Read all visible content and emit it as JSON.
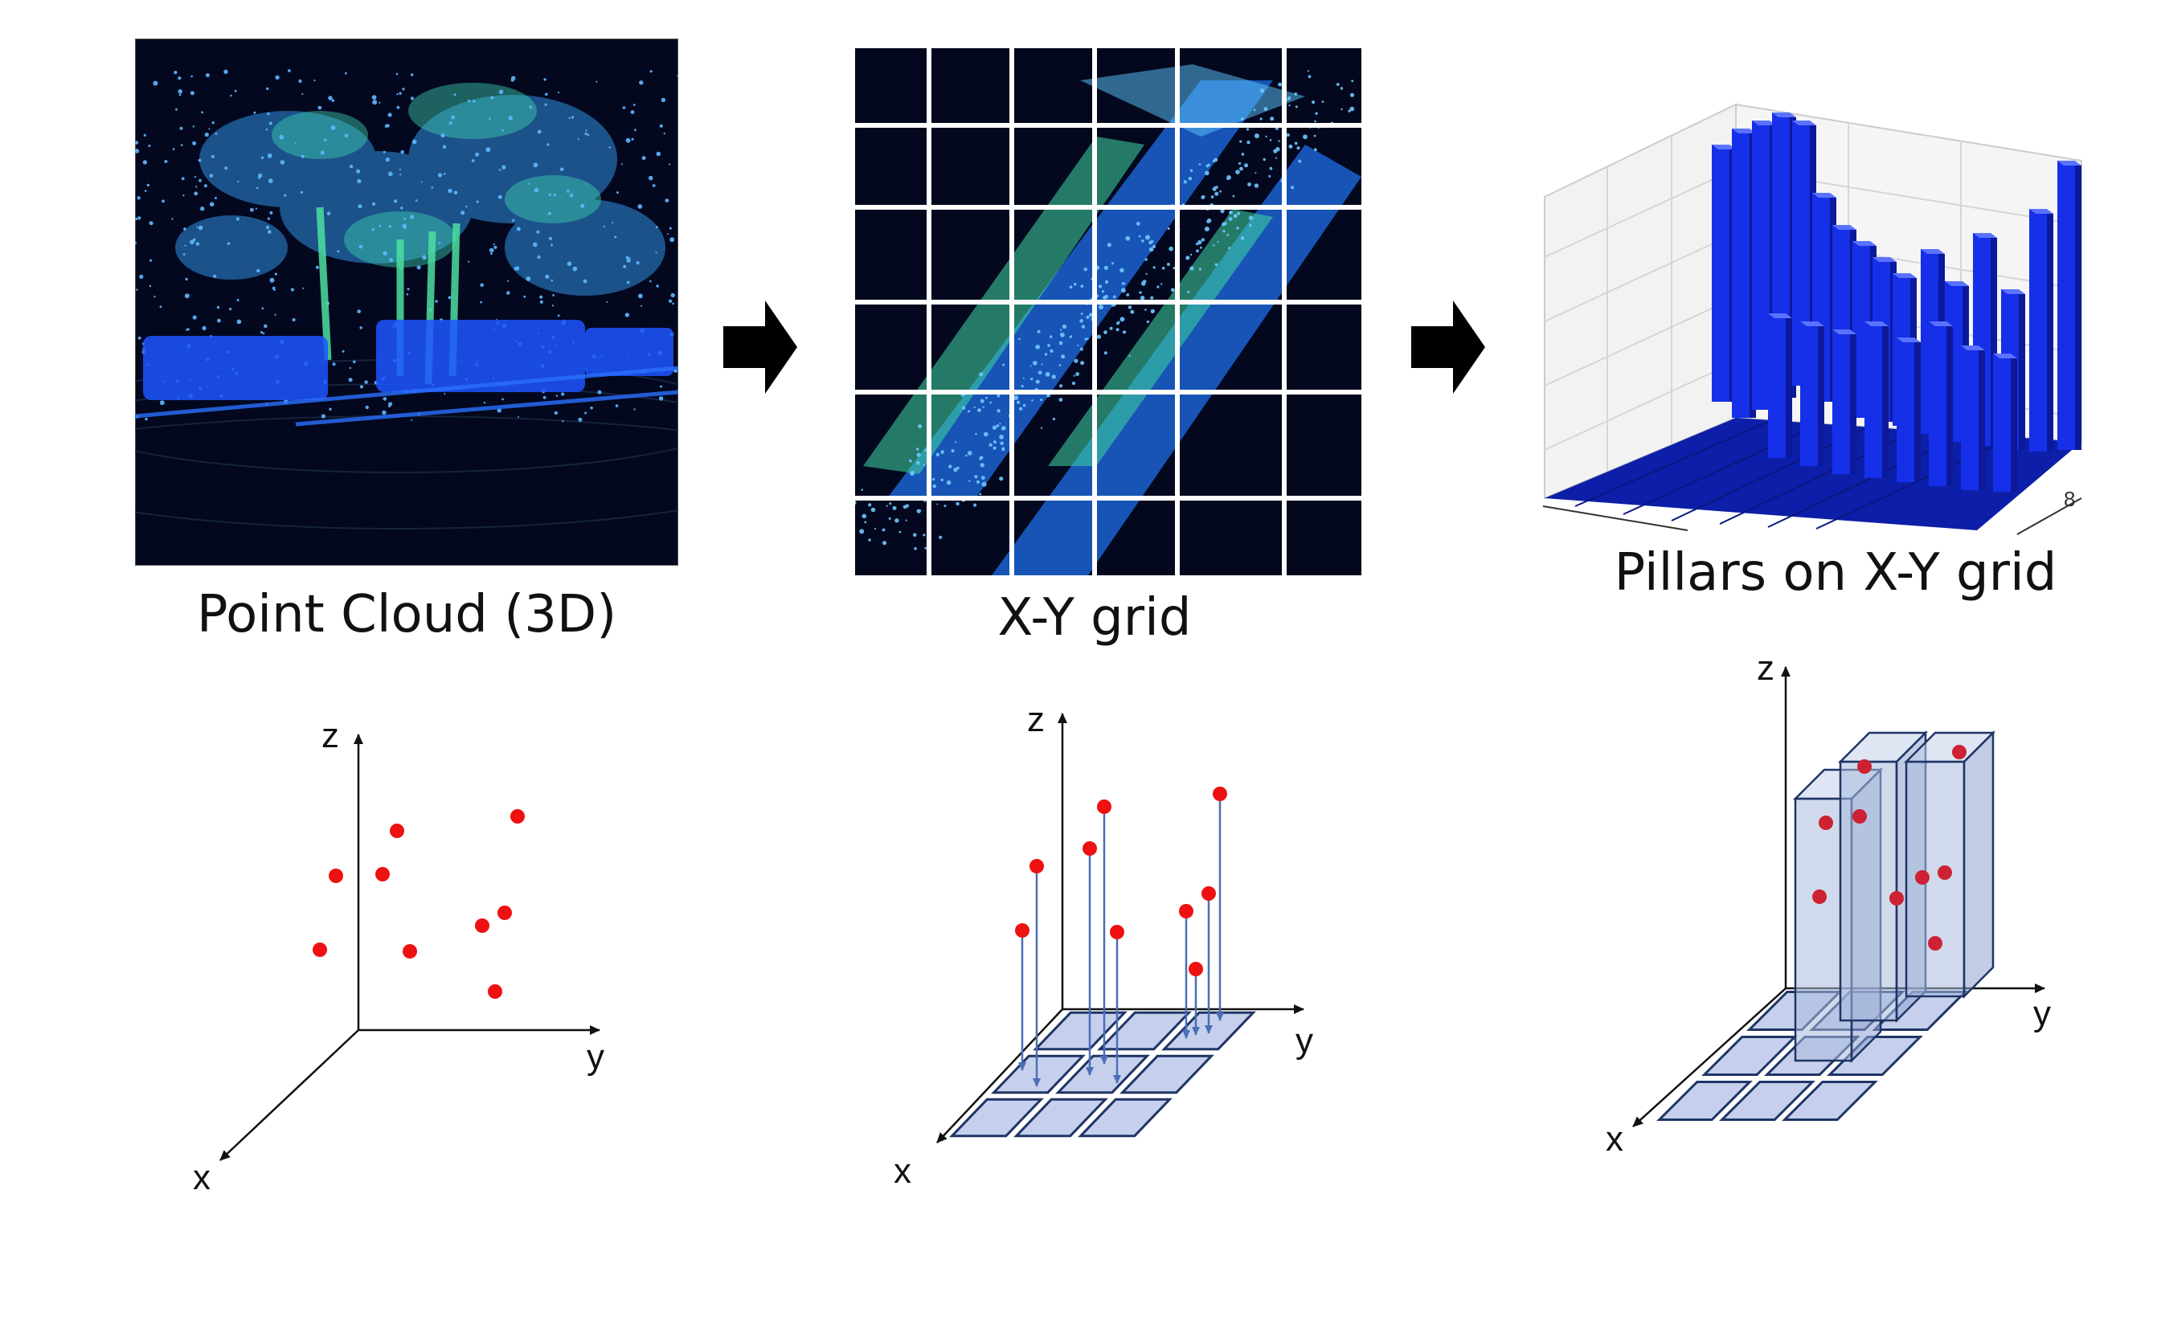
{
  "panels": [
    {
      "caption": "Point Cloud (3D)"
    },
    {
      "caption": "X-Y grid"
    },
    {
      "caption": "Pillars on X-Y grid"
    }
  ],
  "pillar_chart": {
    "tick_label": "8"
  },
  "axes": {
    "x": "x",
    "y": "y",
    "z": "z"
  },
  "colors": {
    "point": "#ee1111",
    "pillar_fill": "#aabbdd",
    "grid_cell": "#c6d0ec",
    "grid_stroke": "#1f3566",
    "arrow": "#4a6fb8",
    "lidar_bg": "#03081f",
    "pillar_bar": "#1530e8"
  }
}
